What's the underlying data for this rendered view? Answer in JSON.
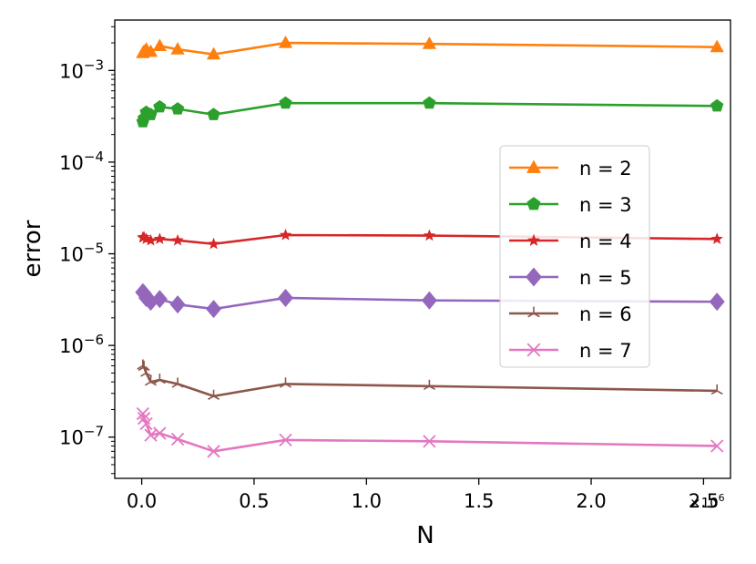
{
  "chart_data": {
    "type": "line",
    "title": "",
    "xlabel": "N",
    "ylabel": "error",
    "x_offset_label": "×10",
    "x_offset_exp": "6",
    "xlim": [
      -0.12,
      2.62
    ],
    "ylim_log10": [
      -7.45,
      -2.45
    ],
    "yscale": "log",
    "grid": false,
    "legend_position": "center-right",
    "x_ticks": [
      {
        "value": 0.0,
        "label": "0.0"
      },
      {
        "value": 0.5,
        "label": "0.5"
      },
      {
        "value": 1.0,
        "label": "1.0"
      },
      {
        "value": 1.5,
        "label": "1.5"
      },
      {
        "value": 2.0,
        "label": "2.0"
      },
      {
        "value": 2.5,
        "label": "2.5"
      }
    ],
    "y_ticks": [
      {
        "exp": -3,
        "base": "10",
        "power": "−3"
      },
      {
        "exp": -4,
        "base": "10",
        "power": "−4"
      },
      {
        "exp": -5,
        "base": "10",
        "power": "−5"
      },
      {
        "exp": -6,
        "base": "10",
        "power": "−6"
      },
      {
        "exp": -7,
        "base": "10",
        "power": "−7"
      }
    ],
    "x": [
      0.005,
      0.01,
      0.02,
      0.04,
      0.08,
      0.16,
      0.32,
      0.64,
      1.28,
      2.56
    ],
    "series": [
      {
        "name": "n = 2",
        "color": "#ff7f0e",
        "marker": "triangle",
        "values": [
          0.00155,
          0.0016,
          0.0017,
          0.0016,
          0.00185,
          0.0017,
          0.0015,
          0.002,
          0.00195,
          0.0018
        ]
      },
      {
        "name": "n = 3",
        "color": "#2ca02c",
        "marker": "pentagon",
        "values": [
          0.000275,
          0.0003,
          0.00035,
          0.00033,
          0.0004,
          0.00038,
          0.00033,
          0.00044,
          0.00044,
          0.00041
        ]
      },
      {
        "name": "n = 4",
        "color": "#d62728",
        "marker": "star",
        "values": [
          1.5e-05,
          1.52e-05,
          1.45e-05,
          1.4e-05,
          1.45e-05,
          1.4e-05,
          1.28e-05,
          1.6e-05,
          1.58e-05,
          1.45e-05
        ]
      },
      {
        "name": "n = 5",
        "color": "#9467bd",
        "marker": "diamond",
        "values": [
          3.8e-06,
          3.7e-06,
          3.3e-06,
          3e-06,
          3.2e-06,
          2.8e-06,
          2.5e-06,
          3.3e-06,
          3.1e-06,
          3e-06
        ]
      },
      {
        "name": "n = 6",
        "color": "#8c564b",
        "marker": "tri",
        "values": [
          6e-07,
          5.8e-07,
          5e-07,
          4e-07,
          4.2e-07,
          3.8e-07,
          2.8e-07,
          3.8e-07,
          3.6e-07,
          3.2e-07
        ]
      },
      {
        "name": "n = 7",
        "color": "#e377c2",
        "marker": "x",
        "values": [
          1.8e-07,
          1.6e-07,
          1.4e-07,
          1.05e-07,
          1.1e-07,
          9.5e-08,
          7e-08,
          9.3e-08,
          9e-08,
          8e-08
        ]
      }
    ]
  }
}
